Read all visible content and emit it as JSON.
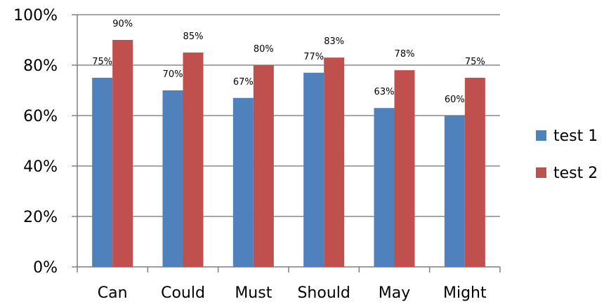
{
  "chart_data": {
    "type": "bar",
    "categories": [
      "Can",
      "Could",
      "Must",
      "Should",
      "May",
      "Might"
    ],
    "series": [
      {
        "name": "test 1",
        "color": "#4f81bd",
        "values": [
          75,
          70,
          67,
          77,
          63,
          60
        ],
        "labels": [
          "75%",
          "70%",
          "67%",
          "77%",
          "63%",
          "60%"
        ]
      },
      {
        "name": "test 2",
        "color": "#c0504d",
        "values": [
          90,
          85,
          80,
          83,
          78,
          75
        ],
        "labels": [
          "90%",
          "85%",
          "80%",
          "83%",
          "78%",
          "75%"
        ]
      }
    ],
    "y_ticks": [
      0,
      20,
      40,
      60,
      80,
      100
    ],
    "y_tick_labels": [
      "0%",
      "20%",
      "40%",
      "60%",
      "80%",
      "100%"
    ],
    "ylim": [
      0,
      100
    ],
    "grid": true,
    "gridline_color": "#8c8c8c",
    "axis_color": "#7f7f7f",
    "legend_position": "right",
    "title": "",
    "xlabel": "",
    "ylabel": ""
  }
}
